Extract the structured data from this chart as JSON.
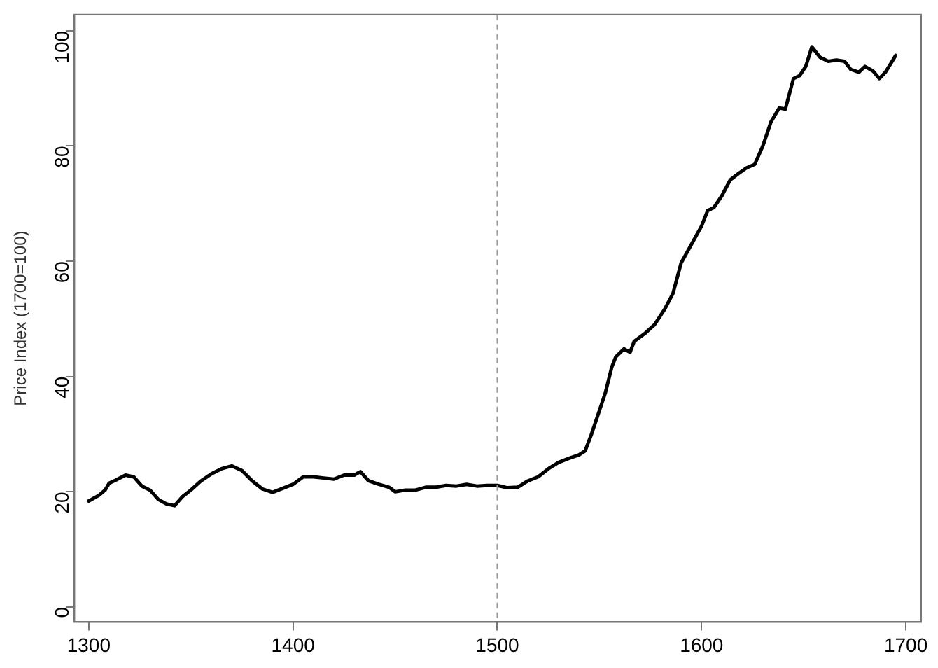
{
  "chart_data": {
    "type": "line",
    "ylabel": "Price Index (1700=100)",
    "x": [
      1300,
      1305,
      1308,
      1310,
      1313,
      1318,
      1322,
      1326,
      1330,
      1334,
      1338,
      1342,
      1346,
      1350,
      1355,
      1360,
      1365,
      1370,
      1375,
      1380,
      1385,
      1390,
      1395,
      1400,
      1405,
      1410,
      1415,
      1420,
      1425,
      1430,
      1433,
      1437,
      1442,
      1447,
      1450,
      1455,
      1460,
      1465,
      1470,
      1475,
      1480,
      1485,
      1490,
      1495,
      1500,
      1505,
      1510,
      1515,
      1520,
      1525,
      1530,
      1535,
      1540,
      1543,
      1546,
      1550,
      1553,
      1556,
      1558,
      1562,
      1565,
      1567,
      1572,
      1577,
      1582,
      1586,
      1590,
      1595,
      1600,
      1603,
      1606,
      1610,
      1614,
      1618,
      1622,
      1626,
      1630,
      1634,
      1638,
      1641,
      1645,
      1648,
      1651,
      1654,
      1658,
      1662,
      1666,
      1670,
      1673,
      1677,
      1680,
      1684,
      1687,
      1690,
      1694,
      1695
    ],
    "series": [
      {
        "color": "#000000",
        "values": [
          18.4,
          19.4,
          20.3,
          21.5,
          22.0,
          22.9,
          22.6,
          21.0,
          20.3,
          18.7,
          17.9,
          17.6,
          19.2,
          20.3,
          21.9,
          23.1,
          24.0,
          24.5,
          23.7,
          21.9,
          20.5,
          19.9,
          20.6,
          21.3,
          22.6,
          22.6,
          22.4,
          22.2,
          22.9,
          22.9,
          23.5,
          21.9,
          21.3,
          20.8,
          20.0,
          20.3,
          20.3,
          20.8,
          20.8,
          21.1,
          21.0,
          21.3,
          21.0,
          21.1,
          21.1,
          20.7,
          20.8,
          21.9,
          22.6,
          24.0,
          25.1,
          25.8,
          26.4,
          27.1,
          29.9,
          34.1,
          37.3,
          41.6,
          43.4,
          44.8,
          44.2,
          46.1,
          47.4,
          49.0,
          51.7,
          54.4,
          59.7,
          62.9,
          66.1,
          68.8,
          69.3,
          71.4,
          74.1,
          75.2,
          76.2,
          76.8,
          80.0,
          84.2,
          86.6,
          86.4,
          91.7,
          92.2,
          93.8,
          97.2,
          95.4,
          94.7,
          94.9,
          94.7,
          93.3,
          92.8,
          93.8,
          93.0,
          91.7,
          92.8,
          95.1,
          95.7
        ]
      }
    ],
    "xlim": [
      1293,
      1707.5
    ],
    "xticks": [
      1300,
      1400,
      1500,
      1600,
      1700
    ],
    "ylim": [
      -2.6,
      102.8
    ],
    "yticks": [
      0,
      20,
      40,
      60,
      80,
      100
    ],
    "ref_lines": [
      {
        "axis": "x",
        "value": 1500,
        "color": "#999999",
        "line_style": "dashed"
      }
    ],
    "grid": false,
    "legend": false,
    "marker": "none",
    "line_style": "solid"
  }
}
